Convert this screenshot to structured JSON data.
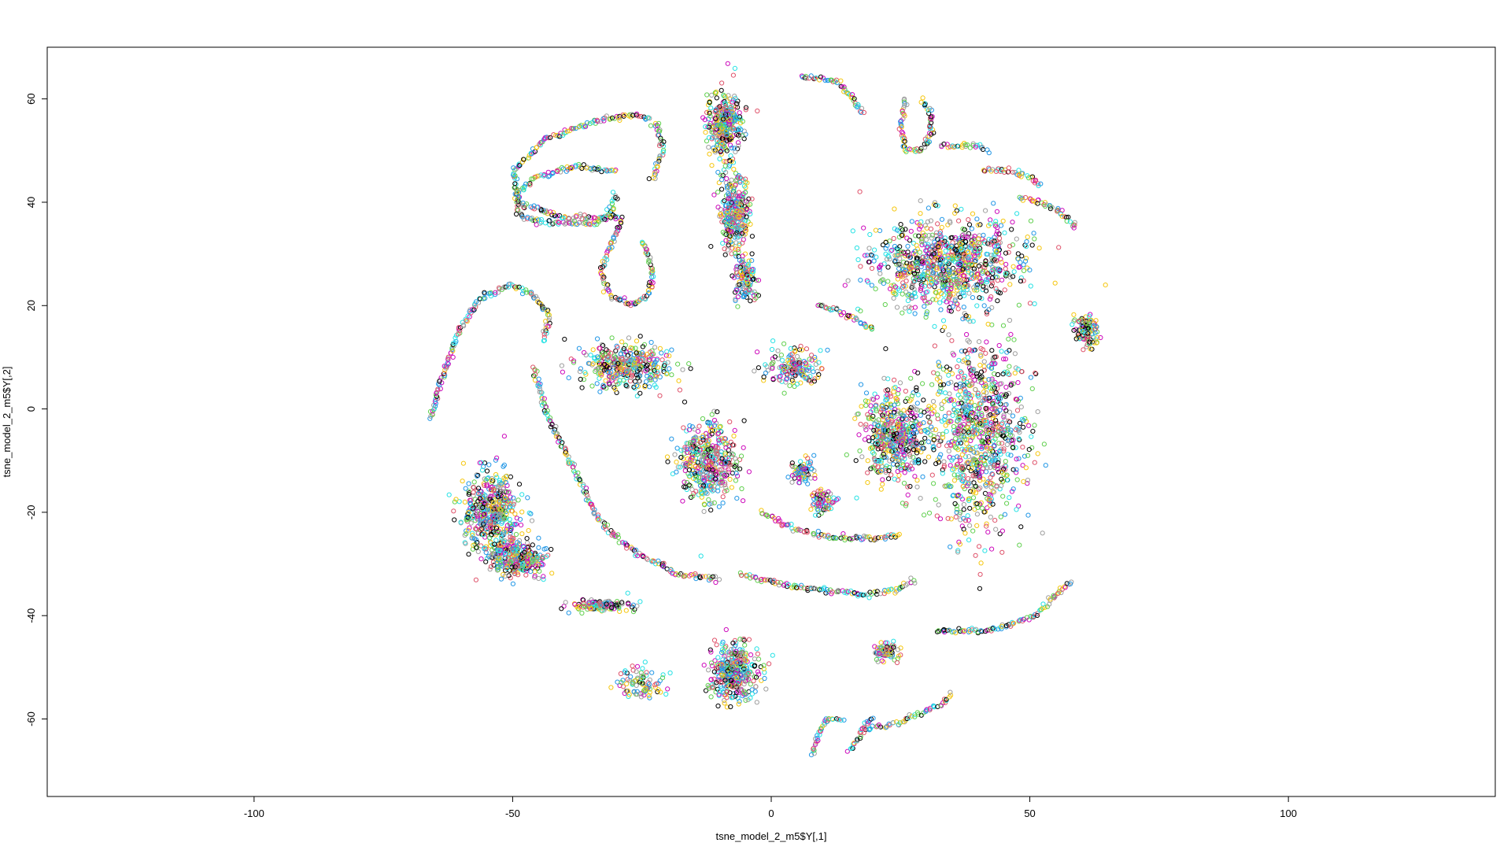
{
  "chart_data": {
    "type": "scatter",
    "title": "",
    "xlabel": "tsne_model_2_m5$Y[,1]",
    "ylabel": "tsne_model_2_m5$Y[,2]",
    "xlim": [
      -140,
      140
    ],
    "ylim": [
      -75,
      70
    ],
    "x_ticks": [
      -100,
      -50,
      0,
      50,
      100
    ],
    "y_ticks": [
      -60,
      -40,
      -20,
      0,
      20,
      40,
      60
    ],
    "x_tick_labels": [
      "-100",
      "-50",
      "0",
      "50",
      "100"
    ],
    "y_tick_labels": [
      "-60",
      "-40",
      "-20",
      "0",
      "20",
      "40",
      "60"
    ],
    "marker": "open-circle",
    "palette": [
      "#000000",
      "#DF536B",
      "#61D04F",
      "#2297E6",
      "#28E2E5",
      "#CD0BBC",
      "#F5C710",
      "#9E9E9E"
    ],
    "grid": false,
    "legend": "none",
    "series": [
      {
        "name": "arc-top-left-loop",
        "shape": "curve",
        "points": [
          [
            -30,
            46
          ],
          [
            -38,
            47
          ],
          [
            -45,
            45
          ],
          [
            -49,
            42
          ],
          [
            -49,
            38
          ],
          [
            -45,
            36
          ],
          [
            -40,
            36
          ],
          [
            -34,
            36
          ],
          [
            -31,
            38
          ],
          [
            -30,
            42
          ]
        ]
      },
      {
        "name": "arc-top-left",
        "shape": "curve",
        "points": [
          [
            -29,
            37
          ],
          [
            -40,
            37
          ],
          [
            -49,
            40
          ],
          [
            -50,
            46
          ],
          [
            -44,
            52
          ],
          [
            -33,
            56
          ],
          [
            -26,
            57
          ],
          [
            -22,
            55
          ],
          [
            -21,
            50
          ],
          [
            -23,
            44
          ]
        ]
      },
      {
        "name": "loop-s-curve",
        "shape": "curve",
        "points": [
          [
            -29,
            36
          ],
          [
            -31,
            32
          ],
          [
            -33,
            26
          ],
          [
            -31,
            22
          ],
          [
            -27,
            20
          ],
          [
            -24,
            22
          ],
          [
            -23,
            26
          ],
          [
            -24,
            30
          ],
          [
            -25,
            33
          ]
        ]
      },
      {
        "name": "arc-left-long",
        "shape": "curve",
        "points": [
          [
            -66,
            -2
          ],
          [
            -63,
            8
          ],
          [
            -60,
            16
          ],
          [
            -56,
            22
          ],
          [
            -50,
            24
          ],
          [
            -46,
            22
          ],
          [
            -43,
            18
          ],
          [
            -44,
            13
          ]
        ]
      },
      {
        "name": "streak-center-curve",
        "shape": "curve",
        "points": [
          [
            -46,
            8
          ],
          [
            -43,
            -2
          ],
          [
            -38,
            -12
          ],
          [
            -33,
            -22
          ],
          [
            -26,
            -28
          ],
          [
            -18,
            -32
          ],
          [
            -10,
            -33
          ]
        ]
      },
      {
        "name": "arc-bottom-center",
        "shape": "curve",
        "points": [
          [
            -6,
            -32
          ],
          [
            2,
            -34
          ],
          [
            10,
            -35
          ],
          [
            18,
            -36
          ],
          [
            24,
            -35
          ],
          [
            28,
            -33
          ]
        ]
      },
      {
        "name": "arc-bottom-right",
        "shape": "curve",
        "points": [
          [
            32,
            -43
          ],
          [
            40,
            -43
          ],
          [
            46,
            -42
          ],
          [
            51,
            -40
          ],
          [
            55,
            -36
          ],
          [
            58,
            -33
          ]
        ]
      },
      {
        "name": "arc-mid-curve",
        "shape": "curve",
        "points": [
          [
            -2,
            -20
          ],
          [
            4,
            -23
          ],
          [
            12,
            -25
          ],
          [
            18,
            -25
          ],
          [
            22,
            -25
          ],
          [
            25,
            -24
          ]
        ]
      },
      {
        "name": "streak-mid-right",
        "shape": "curve",
        "points": [
          [
            9,
            20
          ],
          [
            13,
            19
          ],
          [
            17,
            17
          ],
          [
            20,
            15
          ]
        ]
      },
      {
        "name": "arc-upper-right-dots",
        "shape": "curve",
        "points": [
          [
            33,
            51
          ],
          [
            36,
            51
          ],
          [
            39,
            51
          ],
          [
            42,
            50
          ]
        ]
      },
      {
        "name": "streak-top-right",
        "shape": "curve",
        "points": [
          [
            41,
            46
          ],
          [
            46,
            46
          ],
          [
            50,
            45
          ],
          [
            52,
            43
          ]
        ]
      },
      {
        "name": "streak-right-diag",
        "shape": "curve",
        "points": [
          [
            48,
            41
          ],
          [
            52,
            40
          ],
          [
            56,
            38
          ],
          [
            59,
            35
          ]
        ]
      },
      {
        "name": "loop-top-right-ring",
        "shape": "curve",
        "points": [
          [
            26,
            60
          ],
          [
            25,
            55
          ],
          [
            26,
            50
          ],
          [
            29,
            50
          ],
          [
            31,
            53
          ],
          [
            31,
            57
          ],
          [
            29,
            60
          ]
        ]
      },
      {
        "name": "streaks-top-mid",
        "shape": "curve",
        "points": [
          [
            6,
            64
          ],
          [
            10,
            64
          ],
          [
            13,
            63
          ],
          [
            16,
            60
          ],
          [
            18,
            57
          ]
        ]
      },
      {
        "name": "streak-bottom-right-curve",
        "shape": "curve",
        "points": [
          [
            18,
            -62
          ],
          [
            24,
            -61
          ],
          [
            29,
            -59
          ],
          [
            33,
            -57
          ],
          [
            35,
            -55
          ]
        ]
      },
      {
        "name": "arc-bottom-left-small",
        "shape": "curve",
        "points": [
          [
            8,
            -67
          ],
          [
            9,
            -63
          ],
          [
            11,
            -60
          ],
          [
            14,
            -60
          ]
        ]
      },
      {
        "name": "streak-bottom-right-2",
        "shape": "curve",
        "points": [
          [
            15,
            -66
          ],
          [
            17,
            -64
          ],
          [
            18,
            -61
          ],
          [
            20,
            -60
          ]
        ]
      },
      {
        "name": "cluster-tall-top",
        "shape": "blob",
        "center": [
          -9,
          55
        ],
        "spread": [
          3,
          6
        ],
        "count": 320
      },
      {
        "name": "cluster-tall-mid",
        "shape": "blob",
        "center": [
          -7,
          38
        ],
        "spread": [
          2.5,
          7
        ],
        "count": 300
      },
      {
        "name": "cluster-tall-low",
        "shape": "blob",
        "center": [
          -5,
          25
        ],
        "spread": [
          2,
          4
        ],
        "count": 120
      },
      {
        "name": "cluster-large-right",
        "shape": "blob",
        "center": [
          34,
          28
        ],
        "spread": [
          13,
          8
        ],
        "count": 900
      },
      {
        "name": "cluster-right-lower",
        "shape": "blob",
        "center": [
          40,
          -5
        ],
        "spread": [
          8,
          16
        ],
        "count": 900
      },
      {
        "name": "cluster-center-right",
        "shape": "blob",
        "center": [
          24,
          -5
        ],
        "spread": [
          6,
          8
        ],
        "count": 520
      },
      {
        "name": "cluster-left-arch",
        "shape": "blob",
        "center": [
          -28,
          8
        ],
        "spread": [
          8,
          4
        ],
        "count": 380
      },
      {
        "name": "cluster-center-fan",
        "shape": "blob",
        "center": [
          -12,
          -10
        ],
        "spread": [
          5,
          7
        ],
        "count": 420
      },
      {
        "name": "cluster-center-dots",
        "shape": "blob",
        "center": [
          4,
          8
        ],
        "spread": [
          5,
          3
        ],
        "count": 160
      },
      {
        "name": "cluster-left-big",
        "shape": "blob",
        "center": [
          -54,
          -20
        ],
        "spread": [
          5,
          7
        ],
        "count": 500
      },
      {
        "name": "cluster-left-diag",
        "shape": "blob",
        "center": [
          -49,
          -29
        ],
        "spread": [
          5,
          3
        ],
        "count": 300
      },
      {
        "name": "cluster-bottom-center",
        "shape": "blob",
        "center": [
          -7,
          -51
        ],
        "spread": [
          4,
          5
        ],
        "count": 380
      },
      {
        "name": "cluster-bottom-small-right",
        "shape": "blob",
        "center": [
          22,
          -47
        ],
        "spread": [
          2,
          1.5
        ],
        "count": 90
      },
      {
        "name": "cluster-bottom-left-bar",
        "shape": "blob",
        "center": [
          -33,
          -38
        ],
        "spread": [
          5,
          1
        ],
        "count": 130
      },
      {
        "name": "cluster-right-edge",
        "shape": "blob",
        "center": [
          61,
          15
        ],
        "spread": [
          2,
          3
        ],
        "count": 110
      },
      {
        "name": "cluster-mid-small",
        "shape": "blob",
        "center": [
          6,
          -12
        ],
        "spread": [
          2,
          2.5
        ],
        "count": 70
      },
      {
        "name": "cluster-small-dots",
        "shape": "blob",
        "center": [
          10,
          -18
        ],
        "spread": [
          2,
          2
        ],
        "count": 70
      },
      {
        "name": "cluster-bottom-left-fan",
        "shape": "blob",
        "center": [
          -25,
          -53
        ],
        "spread": [
          4,
          2.5
        ],
        "count": 90
      }
    ]
  }
}
